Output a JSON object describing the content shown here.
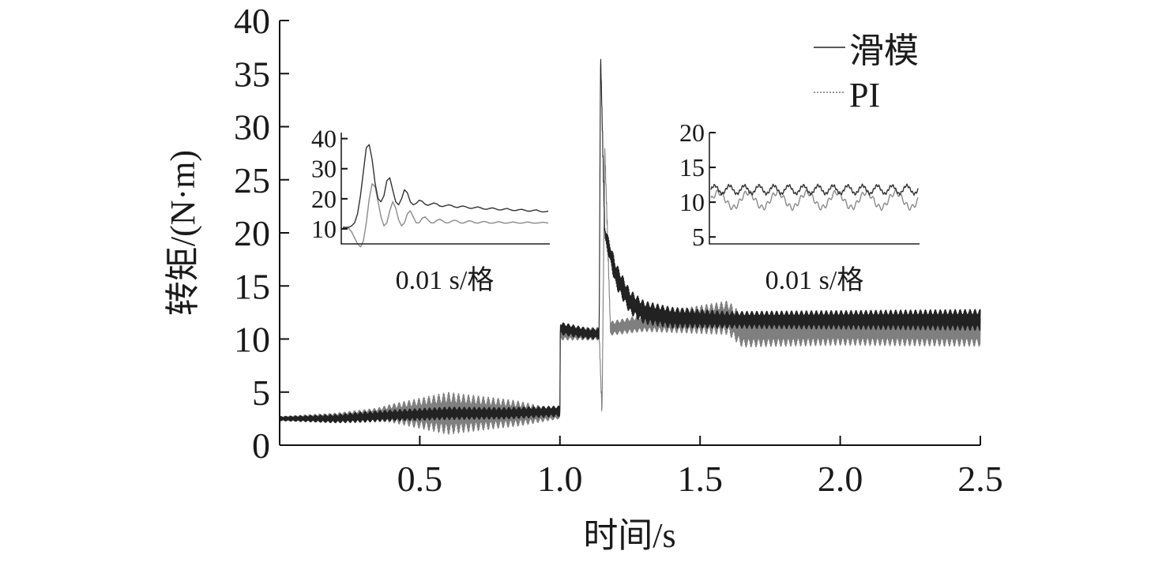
{
  "chart_data": [
    {
      "type": "line",
      "role": "main",
      "xlabel": "时间/s",
      "ylabel": "转矩/(N·m)",
      "xlim": [
        0,
        2.5
      ],
      "ylim": [
        0,
        40
      ],
      "x_ticks": [
        "0.5",
        "1.0",
        "1.5",
        "2.0",
        "2.5"
      ],
      "x_tick_values": [
        0.5,
        1.0,
        1.5,
        2.0,
        2.5
      ],
      "y_ticks": [
        "0",
        "5",
        "10",
        "15",
        "20",
        "25",
        "30",
        "35",
        "40"
      ],
      "y_tick_values": [
        0,
        5,
        10,
        15,
        20,
        25,
        30,
        35,
        40
      ],
      "legend_position": "top-right",
      "series": [
        {
          "name": "滑模",
          "color": "#222222",
          "style": "solid",
          "points": [
            [
              0.0,
              2.5
            ],
            [
              0.2,
              2.5
            ],
            [
              0.4,
              2.8
            ],
            [
              0.6,
              3.0
            ],
            [
              0.8,
              3.0
            ],
            [
              1.0,
              3.2
            ],
            [
              1.001,
              11.0
            ],
            [
              1.1,
              10.5
            ],
            [
              1.14,
              10.5
            ],
            [
              1.145,
              37.0
            ],
            [
              1.16,
              20.0
            ],
            [
              1.2,
              16.0
            ],
            [
              1.25,
              13.5
            ],
            [
              1.3,
              12.5
            ],
            [
              1.4,
              12.0
            ],
            [
              1.6,
              11.8
            ],
            [
              2.0,
              11.8
            ],
            [
              2.5,
              11.8
            ]
          ],
          "oscillation_amplitude": [
            [
              0.0,
              0.2
            ],
            [
              0.3,
              0.5
            ],
            [
              0.6,
              0.6
            ],
            [
              1.0,
              0.5
            ],
            [
              1.001,
              0.6
            ],
            [
              1.14,
              0.5
            ],
            [
              1.2,
              1.2
            ],
            [
              1.6,
              0.8
            ],
            [
              2.5,
              1.0
            ]
          ]
        },
        {
          "name": "PI",
          "color": "#7f7f7f",
          "style": "dotted",
          "points": [
            [
              0.0,
              2.5
            ],
            [
              0.2,
              2.6
            ],
            [
              0.4,
              3.0
            ],
            [
              0.6,
              3.0
            ],
            [
              0.8,
              3.0
            ],
            [
              1.0,
              2.9
            ],
            [
              1.001,
              10.5
            ],
            [
              1.1,
              10.5
            ],
            [
              1.14,
              10.5
            ],
            [
              1.15,
              3.0
            ],
            [
              1.16,
              28.0
            ],
            [
              1.18,
              11.0
            ],
            [
              1.3,
              11.5
            ],
            [
              1.6,
              12.0
            ],
            [
              1.65,
              10.8
            ],
            [
              2.0,
              10.8
            ],
            [
              2.5,
              10.8
            ]
          ],
          "oscillation_amplitude": [
            [
              0.0,
              0.2
            ],
            [
              0.35,
              0.6
            ],
            [
              0.6,
              2.0
            ],
            [
              0.85,
              1.2
            ],
            [
              1.0,
              0.4
            ],
            [
              1.001,
              0.6
            ],
            [
              1.14,
              0.6
            ],
            [
              1.3,
              0.8
            ],
            [
              1.6,
              1.6
            ],
            [
              2.0,
              1.4
            ],
            [
              2.5,
              1.5
            ]
          ]
        }
      ]
    },
    {
      "type": "line",
      "role": "inset-left",
      "xlabel": "0.01 s/格",
      "ylim": [
        5,
        42
      ],
      "y_ticks": [
        "10",
        "20",
        "30",
        "40"
      ],
      "y_tick_values": [
        10,
        20,
        30,
        40
      ],
      "series": [
        {
          "name": "滑模",
          "color": "#333333",
          "values": [
            10.5,
            10.5,
            10.5,
            11,
            12,
            15,
            21,
            29,
            37,
            38,
            33,
            25,
            20,
            19,
            21,
            26,
            27,
            23,
            19,
            18,
            20,
            23,
            22,
            19,
            18,
            18.5,
            19.5,
            19.2,
            18.2,
            17.8,
            18.2,
            18.6,
            18.3,
            17.6,
            17.4,
            17.7,
            18,
            17.8,
            17.3,
            17.1,
            17.4,
            17.6,
            17.3,
            16.9,
            16.8,
            17.1,
            17.3,
            17.0,
            16.6,
            16.5,
            16.8,
            17.0,
            16.7,
            16.3,
            16.3,
            16.6,
            16.8,
            16.4,
            16.1,
            16.1,
            16.4,
            16.5,
            16.2,
            15.9,
            15.9,
            16.2,
            16.3,
            15.9,
            15.6,
            15.7,
            15.9
          ]
        },
        {
          "name": "PI",
          "color": "#8a8a8a",
          "values": [
            10.5,
            10.5,
            10.2,
            9,
            7,
            5,
            4,
            6,
            12,
            20,
            25,
            24,
            19,
            14,
            11,
            12,
            16,
            19,
            17,
            13,
            11,
            12,
            15,
            16,
            14,
            12,
            12,
            13.5,
            14,
            13,
            12,
            12,
            12.8,
            13.2,
            12.7,
            12,
            12,
            12.5,
            12.9,
            12.6,
            12,
            11.9,
            12.3,
            12.7,
            12.5,
            12,
            11.9,
            12.2,
            12.5,
            12.3,
            11.9,
            11.9,
            12.1,
            12.4,
            12.2,
            11.9,
            11.9,
            12.1,
            12.3,
            12.1,
            11.9,
            11.9,
            12.1,
            12.3,
            12.1,
            11.9,
            11.9,
            12.0,
            12.2,
            12.1,
            11.9
          ]
        }
      ]
    },
    {
      "type": "line",
      "role": "inset-right",
      "xlabel": "0.01 s/格",
      "ylim": [
        4,
        20
      ],
      "y_ticks": [
        "5",
        "10",
        "15",
        "20"
      ],
      "y_tick_values": [
        5,
        10,
        15,
        20
      ],
      "series": [
        {
          "name": "滑模",
          "color": "#333333",
          "mean": 11.8,
          "amplitude": 0.6,
          "periods": 14
        },
        {
          "name": "PI",
          "color": "#8a8a8a",
          "mean": 10.3,
          "amplitude": 1.1,
          "periods": 7
        }
      ]
    }
  ]
}
